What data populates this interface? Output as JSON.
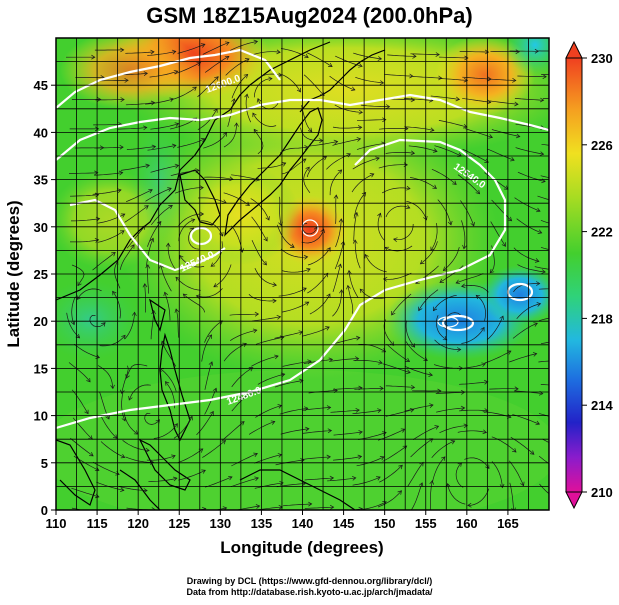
{
  "title": "GSM 18Z15Aug2024 (200.0hPa)",
  "axes": {
    "xlabel": "Longitude (degrees)",
    "ylabel": "Latitude  (degrees)",
    "xticks": [
      "110",
      "115",
      "120",
      "125",
      "130",
      "135",
      "140",
      "145",
      "150",
      "155",
      "160",
      "165"
    ],
    "yticks": [
      "0",
      "5",
      "10",
      "15",
      "20",
      "25",
      "30",
      "35",
      "40",
      "45"
    ],
    "xlim": [
      110,
      170
    ],
    "ylim": [
      0,
      50
    ]
  },
  "colorbar": {
    "labels": [
      "230",
      "226",
      "222",
      "218",
      "214",
      "210"
    ],
    "range": [
      210,
      230
    ],
    "colors": [
      "#e0109a",
      "#8a1ccc",
      "#2222c8",
      "#1e6fe0",
      "#22b8e0",
      "#2fd27a",
      "#43cf2e",
      "#a8dc22",
      "#f0e020",
      "#f5a020",
      "#f04020"
    ]
  },
  "contours": {
    "labels": [
      "12600.0",
      "12540.0",
      "12540.0",
      "12480.0"
    ]
  },
  "credits": {
    "line1": "Drawing by DCL (https://www.gfd-dennou.org/library/dcl/)",
    "line2": "Data from http://database.rish.kyoto-u.ac.jp/arch/jmadata/"
  }
}
